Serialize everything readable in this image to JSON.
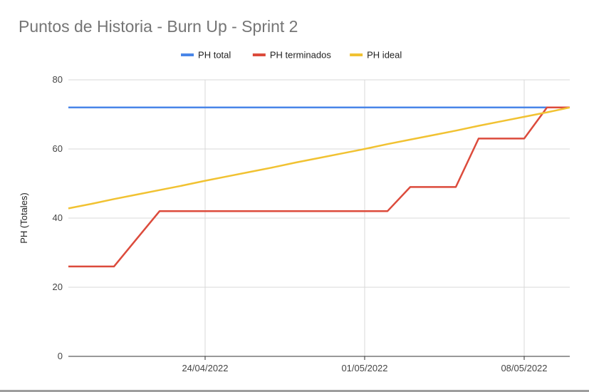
{
  "chart_data": {
    "type": "line",
    "title": "Puntos de Historia - Burn Up - Sprint 2",
    "xlabel": "",
    "ylabel": "PH (Totales)",
    "ylim": [
      0,
      80
    ],
    "yticks": [
      0,
      20,
      40,
      60,
      80
    ],
    "x": [
      "18/04/2022",
      "19/04/2022",
      "20/04/2022",
      "21/04/2022",
      "22/04/2022",
      "23/04/2022",
      "24/04/2022",
      "25/04/2022",
      "26/04/2022",
      "27/04/2022",
      "28/04/2022",
      "29/04/2022",
      "30/04/2022",
      "01/05/2022",
      "02/05/2022",
      "03/05/2022",
      "04/05/2022",
      "05/05/2022",
      "06/05/2022",
      "07/05/2022",
      "08/05/2022",
      "09/05/2022",
      "10/05/2022"
    ],
    "xticks": [
      "24/04/2022",
      "01/05/2022",
      "08/05/2022"
    ],
    "grid": true,
    "legend_position": "top",
    "series": [
      {
        "name": "PH total",
        "color": "#4a86e8",
        "values": [
          72,
          72,
          72,
          72,
          72,
          72,
          72,
          72,
          72,
          72,
          72,
          72,
          72,
          72,
          72,
          72,
          72,
          72,
          72,
          72,
          72,
          72,
          72
        ]
      },
      {
        "name": "PH terminados",
        "color": "#dc4b3c",
        "values": [
          26,
          26,
          26,
          34,
          42,
          42,
          42,
          42,
          42,
          42,
          42,
          42,
          42,
          42,
          42,
          49,
          49,
          49,
          63,
          63,
          63,
          72,
          72
        ]
      },
      {
        "name": "PH ideal",
        "color": "#f1c232",
        "values": [
          42.8,
          44.1,
          45.5,
          46.8,
          48.1,
          49.4,
          50.8,
          52.1,
          53.4,
          54.7,
          56.1,
          57.4,
          58.7,
          60.0,
          61.4,
          62.7,
          64.0,
          65.3,
          66.7,
          68.0,
          69.3,
          70.6,
          72.0
        ]
      }
    ]
  }
}
